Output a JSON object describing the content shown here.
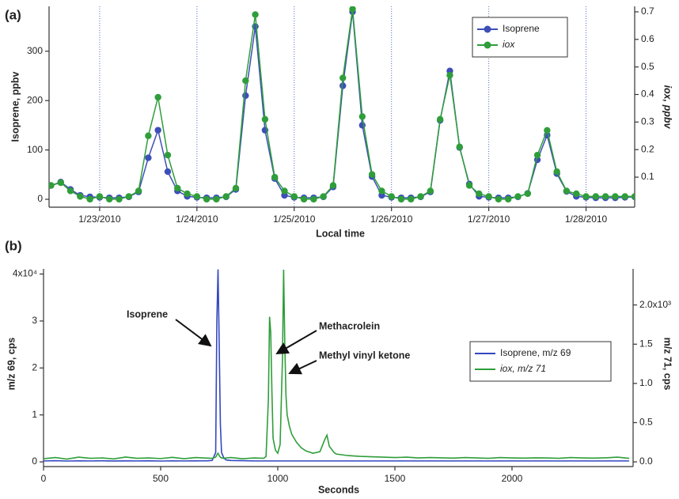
{
  "chart_data": [
    {
      "type": "line",
      "panel_label": "(a)",
      "xlabel": "Local time",
      "ylabel": "Isoprene, ppbv",
      "y2label": "iox, ppbv",
      "x": [
        22.5,
        22.6,
        22.7,
        22.8,
        22.9,
        23.0,
        23.1,
        23.2,
        23.3,
        23.4,
        23.5,
        23.6,
        23.7,
        23.8,
        23.9,
        24.0,
        24.1,
        24.2,
        24.3,
        24.4,
        24.5,
        24.6,
        24.7,
        24.8,
        24.9,
        25.0,
        25.1,
        25.2,
        25.3,
        25.4,
        25.5,
        25.6,
        25.7,
        25.8,
        25.9,
        26.0,
        26.1,
        26.2,
        26.3,
        26.4,
        26.5,
        26.6,
        26.7,
        26.8,
        26.9,
        27.0,
        27.1,
        27.2,
        27.3,
        27.4,
        27.5,
        27.6,
        27.7,
        27.8,
        27.9,
        28.0,
        28.1,
        28.2,
        28.3,
        28.4,
        28.5
      ],
      "xlim": [
        22.48,
        28.5
      ],
      "xticks": [
        {
          "value": 23,
          "label": "1/23/2010"
        },
        {
          "value": 24,
          "label": "1/24/2010"
        },
        {
          "value": 25,
          "label": "1/25/2010"
        },
        {
          "value": 26,
          "label": "1/26/2010"
        },
        {
          "value": 27,
          "label": "1/27/2010"
        },
        {
          "value": 28,
          "label": "1/28/2010"
        }
      ],
      "ylim": [
        -16,
        391
      ],
      "yticks": [
        0,
        100,
        200,
        300
      ],
      "y2lim": [
        -0.009,
        0.72
      ],
      "y2ticks": [
        0.1,
        0.2,
        0.3,
        0.4,
        0.5,
        0.6,
        0.7
      ],
      "grid": true,
      "markers": true,
      "legend": "upper right",
      "series": [
        {
          "name": "Isoprene",
          "color": "#3d4fb8",
          "values": [
            28,
            35,
            20,
            8,
            5,
            4,
            3,
            3,
            5,
            15,
            84,
            140,
            56,
            17,
            6,
            4,
            3,
            3,
            5,
            20,
            210,
            350,
            140,
            42,
            8,
            4,
            3,
            3,
            5,
            25,
            230,
            380,
            150,
            46,
            8,
            4,
            3,
            3,
            5,
            15,
            160,
            260,
            105,
            31,
            6,
            4,
            3,
            3,
            5,
            12,
            80,
            130,
            52,
            16,
            6,
            4,
            3,
            3,
            3,
            4,
            5
          ]
        },
        {
          "name": "iox",
          "color": "#2f9e3a",
          "axis": "y2",
          "values": [
            0.07,
            0.08,
            0.05,
            0.03,
            0.02,
            0.03,
            0.02,
            0.02,
            0.03,
            0.05,
            0.25,
            0.39,
            0.18,
            0.06,
            0.04,
            0.03,
            0.02,
            0.02,
            0.03,
            0.06,
            0.45,
            0.69,
            0.31,
            0.1,
            0.05,
            0.03,
            0.02,
            0.02,
            0.03,
            0.07,
            0.46,
            0.71,
            0.32,
            0.11,
            0.05,
            0.03,
            0.02,
            0.02,
            0.03,
            0.05,
            0.31,
            0.47,
            0.21,
            0.07,
            0.04,
            0.03,
            0.02,
            0.02,
            0.03,
            0.04,
            0.18,
            0.27,
            0.12,
            0.05,
            0.04,
            0.03,
            0.03,
            0.03,
            0.03,
            0.03,
            0.03
          ]
        }
      ]
    },
    {
      "type": "line",
      "panel_label": "(b)",
      "xlabel": "Seconds",
      "ylabel": "m/z 69, cps",
      "y2label": "m/z 71, cps",
      "x": [
        0,
        50,
        100,
        150,
        200,
        250,
        300,
        350,
        400,
        450,
        500,
        550,
        600,
        650,
        700,
        720,
        735,
        740,
        745,
        750,
        755,
        760,
        770,
        780,
        800,
        850,
        900,
        940,
        950,
        960,
        965,
        970,
        975,
        980,
        990,
        1000,
        1010,
        1020,
        1025,
        1030,
        1035,
        1040,
        1050,
        1060,
        1080,
        1100,
        1120,
        1150,
        1180,
        1200,
        1210,
        1220,
        1240,
        1250,
        1300,
        1350,
        1400,
        1450,
        1500,
        1550,
        1600,
        1650,
        1700,
        1750,
        1800,
        1850,
        1900,
        1950,
        2000,
        2050,
        2100,
        2150,
        2200,
        2250,
        2300,
        2350,
        2400,
        2450,
        2500
      ],
      "xlim": [
        0,
        2517
      ],
      "xticks": [
        0,
        500,
        1000,
        1500,
        2000
      ],
      "ylim": [
        -1000,
        41100
      ],
      "yticks": [
        0,
        {
          "value": 10000,
          "label": "1"
        },
        {
          "value": 20000,
          "label": "2"
        },
        {
          "value": 30000,
          "label": "3"
        },
        {
          "value": 40000,
          "label": "4x10⁴"
        }
      ],
      "y2lim": [
        -60,
        2460
      ],
      "y2ticks": [
        {
          "value": 0,
          "label": "0.0"
        },
        {
          "value": 500,
          "label": "0.5"
        },
        {
          "value": 1000,
          "label": "1.0"
        },
        {
          "value": 1500,
          "label": "1.5"
        },
        {
          "value": 2000,
          "label": "2.0x10³"
        }
      ],
      "grid": false,
      "markers": false,
      "legend": "center right",
      "annotations": [
        "Isoprene",
        "Methacrolein",
        "Methyl vinyl ketone"
      ],
      "series": [
        {
          "name": "Isoprene, m/z 69",
          "color": "#3348c0",
          "values": [
            200,
            250,
            180,
            220,
            200,
            230,
            190,
            210,
            200,
            240,
            180,
            220,
            200,
            210,
            230,
            300,
            2000,
            30000,
            41000,
            25000,
            8000,
            2000,
            800,
            400,
            300,
            250,
            200,
            200,
            200,
            200,
            200,
            200,
            200,
            200,
            200,
            200,
            200,
            200,
            200,
            200,
            200,
            200,
            200,
            200,
            200,
            200,
            200,
            200,
            200,
            200,
            200,
            200,
            200,
            200,
            200,
            200,
            200,
            200,
            200,
            200,
            200,
            200,
            200,
            200,
            200,
            200,
            200,
            200,
            200,
            200,
            200,
            200,
            200,
            200,
            200,
            200,
            200,
            200,
            200
          ]
        },
        {
          "name": "iox, m/z 71",
          "color": "#2f9e3a",
          "axis": "y2",
          "values": [
            40,
            55,
            35,
            60,
            45,
            50,
            38,
            62,
            45,
            50,
            42,
            58,
            40,
            55,
            48,
            45,
            60,
            90,
            110,
            80,
            60,
            50,
            45,
            50,
            55,
            40,
            50,
            45,
            70,
            800,
            1850,
            1650,
            900,
            300,
            150,
            110,
            220,
            1300,
            2450,
            1500,
            850,
            600,
            450,
            350,
            250,
            180,
            140,
            110,
            130,
            280,
            340,
            200,
            120,
            100,
            80,
            70,
            65,
            60,
            55,
            60,
            50,
            55,
            52,
            48,
            55,
            50,
            45,
            55,
            50,
            48,
            52,
            50,
            45,
            55,
            50,
            48,
            52,
            60,
            45
          ]
        }
      ]
    }
  ]
}
